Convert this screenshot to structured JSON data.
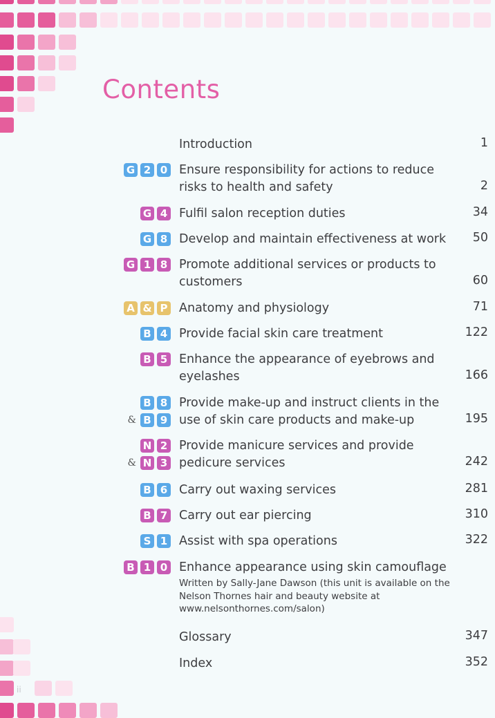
{
  "colors": {
    "blue": "#5aa9e8",
    "magenta": "#c85bb5",
    "gold": "#e7c36c",
    "pink": "#e35fa6"
  },
  "heading": "Contents",
  "page_number": "ii",
  "entries": [
    {
      "title": "Introduction",
      "page": "1",
      "badges": [],
      "amp": ""
    },
    {
      "title": "Ensure responsibility for actions to reduce risks to health and safety",
      "page": "2",
      "badges": [
        "G",
        "2",
        "0"
      ],
      "amp": "",
      "color": "blue"
    },
    {
      "title": "Fulfil salon reception duties",
      "page": "34",
      "badges": [
        "G",
        "4"
      ],
      "amp": "",
      "color": "magenta"
    },
    {
      "title": "Develop and maintain effectiveness at work",
      "page": "50",
      "badges": [
        "G",
        "8"
      ],
      "amp": "",
      "color": "blue"
    },
    {
      "title": "Promote additional services or products to customers",
      "page": "60",
      "badges": [
        "G",
        "1",
        "8"
      ],
      "amp": "",
      "color": "magenta"
    },
    {
      "title": "Anatomy and physiology",
      "page": "71",
      "badges": [
        "A",
        "&",
        "P"
      ],
      "amp": "",
      "color": "gold"
    },
    {
      "title": "Provide facial skin care treatment",
      "page": "122",
      "badges": [
        "B",
        "4"
      ],
      "amp": "",
      "color": "blue"
    },
    {
      "title": "Enhance the appearance of eyebrows and eyelashes",
      "page": "166",
      "badges": [
        "B",
        "5"
      ],
      "amp": "",
      "color": "magenta"
    },
    {
      "title": "Provide make-up and instruct clients in the use of skin care products and make-up",
      "page": "195",
      "badges": [
        "B",
        "8"
      ],
      "badges2": [
        "B",
        "9"
      ],
      "amp": "&",
      "color": "blue"
    },
    {
      "title": "Provide manicure services and provide pedicure services",
      "page": "242",
      "badges": [
        "N",
        "2"
      ],
      "badges2": [
        "N",
        "3"
      ],
      "amp": "&",
      "color": "magenta"
    },
    {
      "title": "Carry out waxing services",
      "page": "281",
      "badges": [
        "B",
        "6"
      ],
      "amp": "",
      "color": "blue"
    },
    {
      "title": "Carry out ear piercing",
      "page": "310",
      "badges": [
        "B",
        "7"
      ],
      "amp": "",
      "color": "magenta"
    },
    {
      "title": "Assist with spa operations",
      "page": "322",
      "badges": [
        "S",
        "1"
      ],
      "amp": "",
      "color": "blue"
    },
    {
      "title": "Enhance appearance using skin camouflage",
      "subtitle": "Written by Sally-Jane Dawson (this unit is available on the Nelson Thornes hair and beauty website at www.nelsonthornes.com/salon)",
      "page": "",
      "badges": [
        "B",
        "1",
        "0"
      ],
      "amp": "",
      "color": "magenta"
    },
    {
      "title": "Glossary",
      "page": "347",
      "badges": [],
      "amp": ""
    },
    {
      "title": "Index",
      "page": "352",
      "badges": [],
      "amp": ""
    }
  ]
}
